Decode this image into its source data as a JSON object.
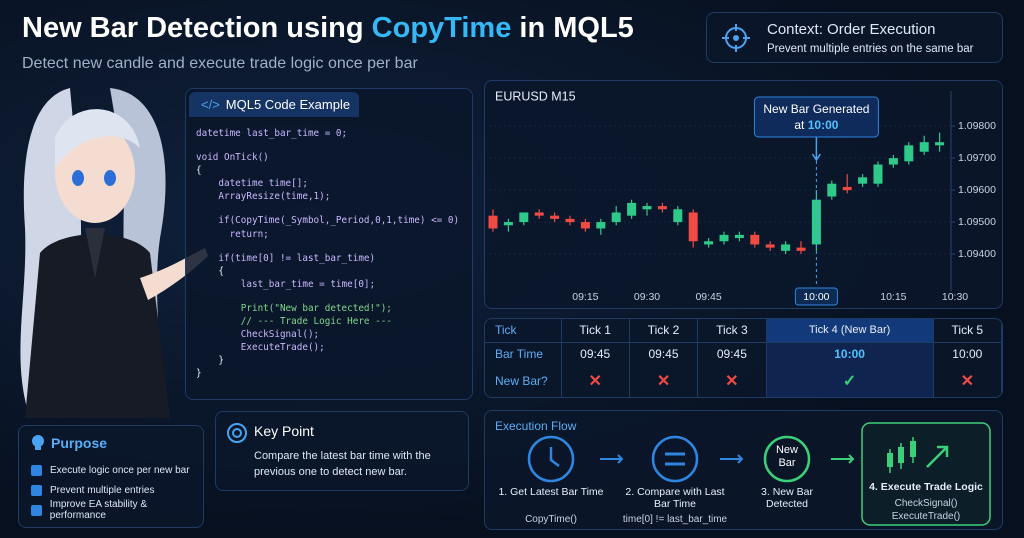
{
  "header": {
    "title_prefix": "New Bar Detection using ",
    "title_highlight": "CopyTime",
    "title_suffix": " in MQL5",
    "subtitle": "Detect new candle and execute trade logic once per bar"
  },
  "context": {
    "title": "Context: Order Execution",
    "text": "Prevent multiple entries on the same bar"
  },
  "code": {
    "title": "MQL5 Code Example",
    "blocks": [
      [
        "datetime last_bar_time = 0;"
      ],
      [
        "void OnTick()",
        "{",
        "    datetime time[];",
        "    ArrayResize(time,1);"
      ],
      [
        "    if(CopyTime(_Symbol,_Period,0,1,time) <= 0)",
        "      return;"
      ],
      [
        "    if(time[0] != last_bar_time)",
        "    {",
        "        last_bar_time = time[0];"
      ],
      [
        "        Print(\"New bar detected!\");",
        "        // --- Trade Logic Here ---",
        "        CheckSignal();",
        "        ExecuteTrade();",
        "    }",
        "}"
      ]
    ]
  },
  "chart_data": {
    "type": "candlestick",
    "title": "EURUSD  M15",
    "annotation": {
      "line1": "New Bar Generated",
      "line2_prefix": "at ",
      "time": "10:00"
    },
    "categories": [
      null,
      null,
      null,
      null,
      null,
      null,
      "09:15",
      null,
      null,
      null,
      "09:30",
      null,
      null,
      null,
      "09:45",
      null,
      null,
      null,
      null,
      null,
      null,
      "10:00",
      null,
      null,
      null,
      null,
      "10:15",
      null,
      null,
      null,
      "10:30"
    ],
    "open": [
      1.0952,
      1.0949,
      1.095,
      1.0953,
      1.0952,
      1.0951,
      1.095,
      1.0948,
      1.095,
      1.0952,
      1.0954,
      1.0955,
      1.095,
      1.0953,
      1.0943,
      1.0944,
      1.0945,
      1.0946,
      1.0943,
      1.0941,
      1.0942,
      1.0943,
      1.0958,
      1.0961,
      1.0962,
      1.0962,
      1.0968,
      1.0969,
      1.0972,
      1.0974,
      null
    ],
    "high": [
      1.0954,
      1.0951,
      1.0953,
      1.0954,
      1.0953,
      1.0952,
      1.0951,
      1.0951,
      1.0955,
      1.0957,
      1.0956,
      1.0956,
      1.0955,
      1.0954,
      1.0945,
      1.0947,
      1.0947,
      1.0947,
      1.0944,
      1.0944,
      1.0944,
      1.096,
      1.0963,
      1.0965,
      1.0965,
      1.0969,
      1.0971,
      1.0975,
      1.0977,
      1.0978,
      null
    ],
    "low": [
      1.0947,
      1.0947,
      1.0949,
      1.0951,
      1.095,
      1.0949,
      1.0947,
      1.0946,
      1.0949,
      1.0951,
      1.0952,
      1.0953,
      1.0949,
      1.0942,
      1.0942,
      1.0943,
      1.0944,
      1.0942,
      1.0941,
      1.094,
      1.094,
      1.0941,
      1.0957,
      1.0959,
      1.0961,
      1.0961,
      1.0967,
      1.0968,
      1.0971,
      1.0972,
      null
    ],
    "close": [
      1.0948,
      1.095,
      1.0953,
      1.0952,
      1.0951,
      1.095,
      1.0948,
      1.095,
      1.0953,
      1.0956,
      1.0955,
      1.0954,
      1.0954,
      1.0944,
      1.0944,
      1.0946,
      1.0946,
      1.0943,
      1.0942,
      1.0943,
      1.0941,
      1.0957,
      1.0962,
      1.096,
      1.0964,
      1.0968,
      1.097,
      1.0974,
      1.0975,
      1.0975,
      null
    ],
    "up_color": "#2fc98a",
    "down_color": "#ef4b43",
    "ylim": [
      1.093,
      1.0991
    ],
    "yticks": [
      {
        "value": 1.094,
        "label": "1.09400"
      },
      {
        "value": 1.095,
        "label": "1.09500"
      },
      {
        "value": 1.096,
        "label": "1.09600"
      },
      {
        "value": 1.097,
        "label": "1.09700"
      },
      {
        "value": 1.098,
        "label": "1.09800"
      }
    ],
    "grid": true
  },
  "ticks_table": {
    "corner": "Tick",
    "columns": [
      "Tick 1",
      "Tick 2",
      "Tick 3",
      "Tick 4 (New Bar)",
      "Tick 5"
    ],
    "rows": [
      {
        "label": "Bar Time",
        "cells": [
          "09:45",
          "09:45",
          "09:45",
          "10:00",
          "10:00"
        ]
      },
      {
        "label": "New Bar?",
        "cells": [
          "✕",
          "✕",
          "✕",
          "✓",
          "✕"
        ]
      }
    ]
  },
  "purpose": {
    "title": "Purpose",
    "items": [
      "Execute logic once per new bar",
      "Prevent multiple entries",
      "Improve EA stability & performance"
    ]
  },
  "key_point": {
    "title": "Key Point",
    "text": "Compare the latest bar time with the previous one to detect new bar."
  },
  "execution_flow": {
    "title": "Execution Flow",
    "steps": [
      {
        "label": "1. Get Latest Bar Time",
        "code": "CopyTime()"
      },
      {
        "label": "2. Compare with Last Bar Time",
        "code": "time[0] != last_bar_time"
      },
      {
        "icon_text": "New Bar",
        "label": "3. New Bar Detected"
      },
      {
        "label": "4. Execute Trade Logic",
        "code_lines": [
          "CheckSignal()",
          "ExecuteTrade()"
        ]
      }
    ]
  }
}
